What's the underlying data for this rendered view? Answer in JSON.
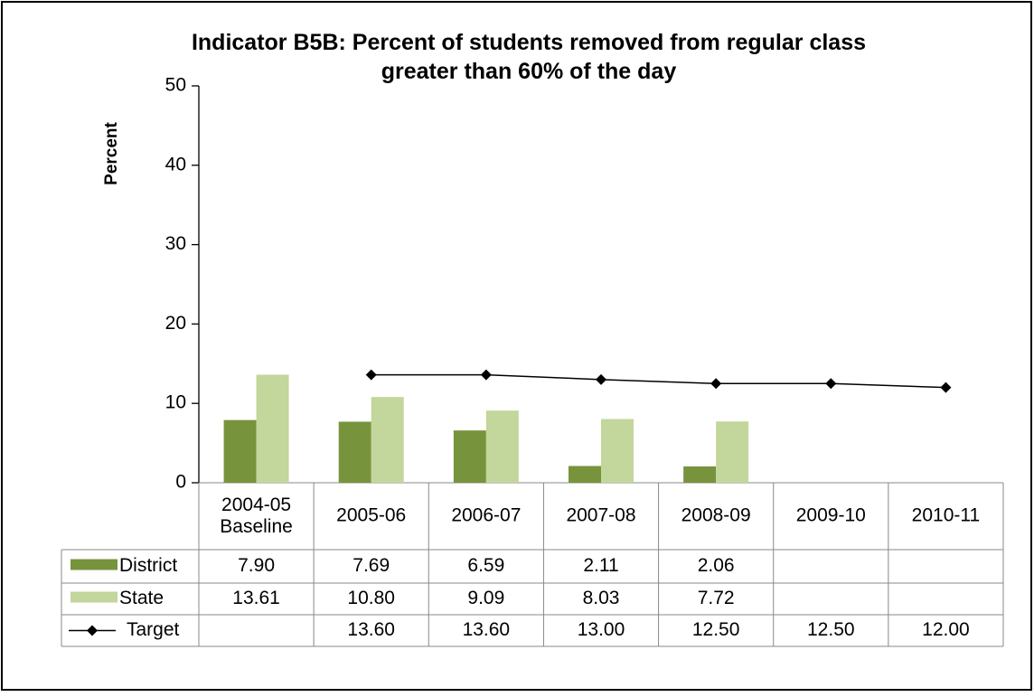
{
  "chart_data": {
    "type": "bar",
    "title": "Indicator B5B: Percent of students removed from regular class greater than 60% of the day",
    "y_label": "Percent",
    "categories": [
      "2004-05 Baseline",
      "2005-06",
      "2006-07",
      "2007-08",
      "2008-09",
      "2009-10",
      "2010-11"
    ],
    "series": [
      {
        "name": "District",
        "type": "bar",
        "color": "#77933c",
        "values": [
          7.9,
          7.69,
          6.59,
          2.11,
          2.06,
          null,
          null
        ],
        "value_labels": [
          "7.90",
          "7.69",
          "6.59",
          "2.11",
          "2.06",
          null,
          null
        ]
      },
      {
        "name": "State",
        "type": "bar",
        "color": "#c3d69b",
        "values": [
          13.61,
          10.8,
          9.09,
          8.03,
          7.72,
          null,
          null
        ],
        "value_labels": [
          "13.61",
          "10.80",
          "9.09",
          "8.03",
          "7.72",
          null,
          null
        ]
      },
      {
        "name": "Target",
        "type": "line",
        "color": "#000000",
        "values": [
          null,
          13.6,
          13.6,
          13.0,
          12.5,
          12.5,
          12.0
        ],
        "value_labels": [
          null,
          "13.60",
          "13.60",
          "13.00",
          "12.50",
          "12.50",
          "12.00"
        ]
      }
    ],
    "ylim": [
      0,
      50
    ],
    "yticks": [
      0,
      10,
      20,
      30,
      40,
      50
    ],
    "grid": false,
    "data_table": true
  }
}
